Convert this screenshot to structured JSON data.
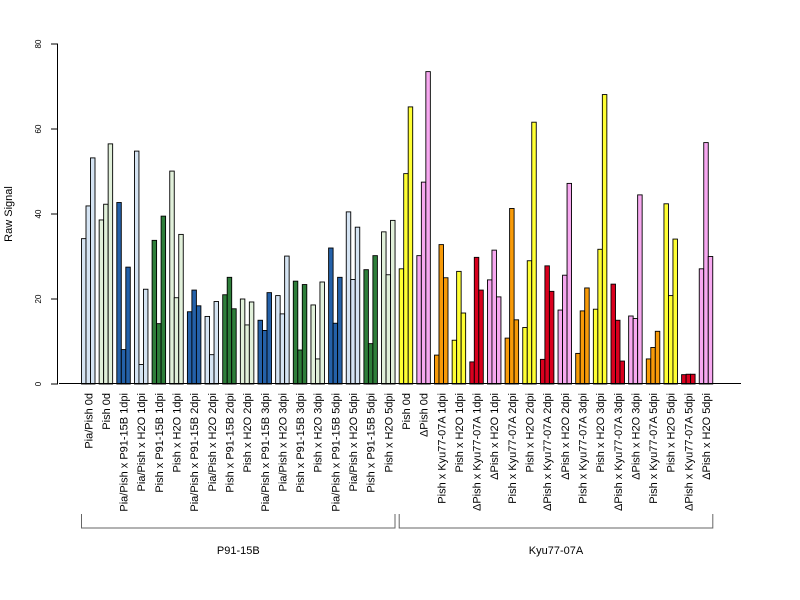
{
  "chart_data": {
    "type": "bar",
    "ylabel": "Raw Signal",
    "xlabel": "",
    "ylim": [
      0,
      80
    ],
    "yticks": [
      0,
      20,
      40,
      60,
      80
    ],
    "grid": false,
    "groups": [
      {
        "label": "P91-15B",
        "first": 0,
        "last": 17
      },
      {
        "label": "Kyu77-07A",
        "first": 18,
        "last": 35
      }
    ],
    "categories": [
      {
        "label": "Pia/Pish 0d",
        "color": "#d5e4f3",
        "values": [
          34.2,
          41.9,
          53.2
        ]
      },
      {
        "label": "Pish 0d",
        "color": "#e1f0da",
        "values": [
          38.6,
          42.3,
          56.5
        ]
      },
      {
        "label": "Pia/Pish x P91-15B 1dpi",
        "color": "#2461a9",
        "values": [
          42.7,
          8.1,
          27.5
        ]
      },
      {
        "label": "Pia/Pish x H2O 1dpi",
        "color": "#d5e4f3",
        "values": [
          54.8,
          4.6,
          22.3
        ]
      },
      {
        "label": "Pish x P91-15B 1dpi",
        "color": "#2e7e3a",
        "values": [
          33.8,
          14.2,
          39.5
        ]
      },
      {
        "label": "Pish x H2O 1dpi",
        "color": "#e1f0da",
        "values": [
          50.1,
          20.3,
          35.2
        ]
      },
      {
        "label": "Pia/Pish x P91-15B 2dpi",
        "color": "#2461a9",
        "values": [
          17.0,
          22.1,
          18.4
        ]
      },
      {
        "label": "Pia/Pish x H2O 2dpi",
        "color": "#d5e4f3",
        "values": [
          15.9,
          6.9,
          19.4
        ]
      },
      {
        "label": "Pish x P91-15B 2dpi",
        "color": "#2e7e3a",
        "values": [
          21.0,
          25.1,
          17.7
        ]
      },
      {
        "label": "Pish x H2O 2dpi",
        "color": "#e1f0da",
        "values": [
          20.0,
          13.9,
          19.3
        ]
      },
      {
        "label": "Pia/Pish x P91-15B 3dpi",
        "color": "#2461a9",
        "values": [
          15.0,
          12.6,
          21.5
        ]
      },
      {
        "label": "Pia/Pish x H2O 3dpi",
        "color": "#d5e4f3",
        "values": [
          20.8,
          16.5,
          30.1
        ]
      },
      {
        "label": "Pish x P91-15B 3dpi",
        "color": "#2e7e3a",
        "values": [
          24.2,
          8.0,
          23.4
        ]
      },
      {
        "label": "Pish x H2O 3dpi",
        "color": "#e1f0da",
        "values": [
          18.6,
          5.9,
          24.0
        ]
      },
      {
        "label": "Pia/Pish x P91-15B 5dpi",
        "color": "#2461a9",
        "values": [
          32.0,
          14.3,
          25.1
        ]
      },
      {
        "label": "Pia/Pish x H2O 5dpi",
        "color": "#d5e4f3",
        "values": [
          40.5,
          24.6,
          36.9
        ]
      },
      {
        "label": "Pish x P91-15B 5dpi",
        "color": "#2e7e3a",
        "values": [
          26.9,
          9.5,
          30.2
        ]
      },
      {
        "label": "Pish x H2O 5dpi",
        "color": "#e1f0da",
        "values": [
          35.8,
          25.7,
          38.5
        ]
      },
      {
        "label": "Pish 0d",
        "color": "#ffff33",
        "values": [
          27.1,
          49.5,
          65.2
        ]
      },
      {
        "label": "ΔPish 0d",
        "color": "#f7a8f0",
        "values": [
          30.2,
          47.5,
          73.5
        ]
      },
      {
        "label": "Pish x Kyu77-07A 1dpi",
        "color": "#f79a08",
        "values": [
          6.8,
          32.8,
          25.0
        ]
      },
      {
        "label": "Pish x H2O 1dpi",
        "color": "#ffff33",
        "values": [
          10.3,
          26.5,
          16.7
        ]
      },
      {
        "label": "ΔPish x Kyu77-07A 1dpi",
        "color": "#d9001e",
        "values": [
          5.2,
          29.8,
          22.1
        ]
      },
      {
        "label": "ΔPish x H2O 1dpi",
        "color": "#f7a8f0",
        "values": [
          24.5,
          31.5,
          20.5
        ]
      },
      {
        "label": "Pish x Kyu77-07A 2dpi",
        "color": "#f79a08",
        "values": [
          10.8,
          41.3,
          15.1
        ]
      },
      {
        "label": "Pish x H2O 2dpi",
        "color": "#ffff33",
        "values": [
          13.3,
          29.0,
          61.6
        ]
      },
      {
        "label": "ΔPish x Kyu77-07A 2dpi",
        "color": "#d9001e",
        "values": [
          5.8,
          27.8,
          21.8
        ]
      },
      {
        "label": "ΔPish x H2O 2dpi",
        "color": "#f7a8f0",
        "values": [
          17.4,
          25.6,
          47.2
        ]
      },
      {
        "label": "Pish x Kyu77-07A 3dpi",
        "color": "#f79a08",
        "values": [
          7.2,
          17.2,
          22.6
        ]
      },
      {
        "label": "Pish x H2O 3dpi",
        "color": "#ffff33",
        "values": [
          17.6,
          31.7,
          68.1
        ]
      },
      {
        "label": "ΔPish x Kyu77-07A 3dpi",
        "color": "#d9001e",
        "values": [
          23.5,
          15.0,
          5.4
        ]
      },
      {
        "label": "ΔPish x H2O 3dpi",
        "color": "#f7a8f0",
        "values": [
          16.0,
          15.4,
          44.5
        ]
      },
      {
        "label": "Pish x Kyu77-07A 5dpi",
        "color": "#f79a08",
        "values": [
          5.9,
          8.6,
          12.4
        ]
      },
      {
        "label": "Pish x H2O 5dpi",
        "color": "#ffff33",
        "values": [
          42.4,
          20.8,
          34.1
        ]
      },
      {
        "label": "ΔPish x Kyu77-07A 5dpi",
        "color": "#d9001e",
        "values": [
          2.2,
          2.3,
          2.3
        ]
      },
      {
        "label": "ΔPish x H2O 5dpi",
        "color": "#f7a8f0",
        "values": [
          27.1,
          56.8,
          30.0
        ]
      }
    ]
  }
}
